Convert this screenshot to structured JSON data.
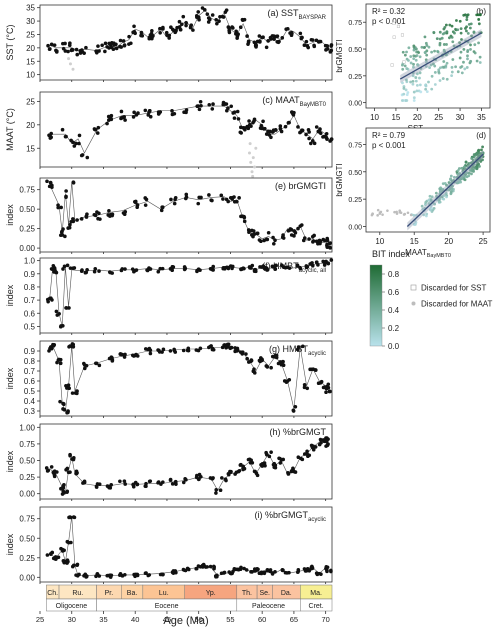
{
  "figure": {
    "x_axis_title": "Age (Ma)",
    "x_ticks": [
      25,
      30,
      35,
      40,
      45,
      50,
      55,
      60,
      65,
      70
    ],
    "stages": [
      {
        "label": "Ch.",
        "start": 26.0,
        "end": 28.0,
        "color": "#fde6c2"
      },
      {
        "label": "Ru.",
        "start": 28.0,
        "end": 33.9,
        "color": "#fde6c2"
      },
      {
        "label": "Pr.",
        "start": 33.9,
        "end": 37.8,
        "color": "#fdd8b0"
      },
      {
        "label": "Ba.",
        "start": 37.8,
        "end": 41.2,
        "color": "#fdd2a4"
      },
      {
        "label": "Lu.",
        "start": 41.2,
        "end": 47.8,
        "color": "#fcc494"
      },
      {
        "label": "Yp.",
        "start": 47.8,
        "end": 56.0,
        "color": "#f6a57f"
      },
      {
        "label": "Th.",
        "start": 56.0,
        "end": 59.2,
        "color": "#fbc3a0"
      },
      {
        "label": "Se.",
        "start": 59.2,
        "end": 61.6,
        "color": "#fbc3a0"
      },
      {
        "label": "Da.",
        "start": 61.6,
        "end": 66.0,
        "color": "#fbc3a0"
      },
      {
        "label": "Ma.",
        "start": 66.0,
        "end": 71.0,
        "color": "#f7ef93"
      }
    ],
    "epochs": [
      {
        "label": "Oligocene",
        "start": 26.0,
        "end": 33.9
      },
      {
        "label": "Eocene",
        "start": 33.9,
        "end": 56.0
      },
      {
        "label": "Paleocene",
        "start": 56.0,
        "end": 66.0
      },
      {
        "label": "Cret.",
        "start": 66.0,
        "end": 71.0
      }
    ],
    "colorbar": {
      "title": "BIT index",
      "ticks": [
        "0.0",
        "0.2",
        "0.4",
        "0.6",
        "0.8"
      ],
      "min": 0.0,
      "max": 0.9,
      "low_color": "#b9e2ec",
      "high_color": "#1f6b34"
    },
    "legend": {
      "items": [
        {
          "label": "Discarded for SST",
          "marker": "white-square"
        },
        {
          "label": "Discarded for MAAT",
          "marker": "grey-dot"
        }
      ]
    }
  },
  "chart_data": [
    {
      "id": "a",
      "type": "line",
      "xlim": [
        25,
        71
      ],
      "ylim": [
        8,
        36
      ],
      "ylabel": "SST (°C)",
      "yticks": [
        10,
        15,
        20,
        25,
        30,
        35
      ],
      "panel_label": "(a) SST",
      "panel_sub": "BAYSPAR",
      "segments": [
        [
          26.5,
          21
        ],
        [
          27.5,
          20
        ],
        [
          29,
          20
        ],
        [
          30,
          20
        ],
        [
          31,
          19
        ],
        [
          32,
          19.5
        ],
        [
          34,
          19
        ],
        [
          35,
          20
        ],
        [
          36,
          21
        ],
        [
          37,
          20
        ],
        [
          38,
          22
        ],
        [
          39,
          23
        ],
        [
          40,
          27
        ],
        [
          41,
          26
        ],
        [
          42,
          24
        ],
        [
          43,
          25
        ],
        [
          44,
          27
        ],
        [
          45,
          24
        ],
        [
          46,
          26
        ],
        [
          47,
          28
        ],
        [
          48,
          30
        ],
        [
          49,
          27
        ],
        [
          50,
          32
        ],
        [
          51,
          34
        ],
        [
          52,
          31
        ],
        [
          53,
          30
        ],
        [
          54,
          33
        ],
        [
          55,
          27
        ],
        [
          56,
          25
        ],
        [
          57,
          29
        ],
        [
          58,
          23
        ],
        [
          59,
          22
        ],
        [
          60,
          24
        ],
        [
          61,
          22
        ],
        [
          62,
          24
        ],
        [
          63,
          23
        ],
        [
          64,
          27
        ],
        [
          65,
          26
        ],
        [
          66,
          24
        ],
        [
          67,
          21
        ],
        [
          68,
          22
        ],
        [
          69,
          23
        ],
        [
          70,
          21
        ],
        [
          70.5,
          20
        ]
      ],
      "discarded": [
        [
          29.8,
          14
        ],
        [
          30.2,
          12
        ],
        [
          29.5,
          16
        ]
      ],
      "spread": 1.8
    },
    {
      "id": "c",
      "type": "line",
      "xlim": [
        25,
        71
      ],
      "ylim": [
        11,
        27
      ],
      "ylabel": "MAAT (°C)",
      "yticks": [
        15,
        20,
        25
      ],
      "panel_label": "(c) MAAT",
      "panel_sub": "BayMBT0",
      "segments": [
        [
          26.5,
          18
        ],
        [
          29,
          18
        ],
        [
          30,
          16
        ],
        [
          31,
          17
        ],
        [
          32,
          14
        ],
        [
          34,
          19
        ],
        [
          36,
          21
        ],
        [
          38,
          22
        ],
        [
          40,
          22
        ],
        [
          42,
          22.5
        ],
        [
          44,
          23
        ],
        [
          46,
          23
        ],
        [
          48,
          23.5
        ],
        [
          50,
          24
        ],
        [
          52,
          24
        ],
        [
          54,
          24
        ],
        [
          55,
          23
        ],
        [
          56,
          22
        ],
        [
          57,
          19
        ],
        [
          58,
          20
        ],
        [
          59,
          21
        ],
        [
          60,
          20
        ],
        [
          61,
          18
        ],
        [
          62,
          18
        ],
        [
          63,
          19
        ],
        [
          64,
          20
        ],
        [
          65,
          22
        ],
        [
          66,
          19
        ],
        [
          67,
          18
        ],
        [
          68,
          17
        ],
        [
          69,
          19
        ],
        [
          70,
          18
        ],
        [
          70.5,
          17
        ]
      ],
      "discarded": [
        [
          58,
          14
        ],
        [
          58.2,
          12
        ],
        [
          58.4,
          10
        ],
        [
          58.6,
          13
        ],
        [
          58.8,
          11
        ],
        [
          59,
          15
        ],
        [
          58.1,
          16
        ],
        [
          58.5,
          9
        ]
      ],
      "spread": 1.0
    },
    {
      "id": "e",
      "type": "line",
      "xlim": [
        25,
        71
      ],
      "ylim": [
        -0.05,
        0.9
      ],
      "ylabel": "index",
      "yticks": [
        "0.00",
        "0.25",
        "0.50",
        "0.75"
      ],
      "panel_label": "(e) brGMGTI",
      "panel_sub": "",
      "segments": [
        [
          26.5,
          0.82
        ],
        [
          28,
          0.55
        ],
        [
          28.5,
          0.2
        ],
        [
          29,
          0.7
        ],
        [
          29.5,
          0.3
        ],
        [
          30,
          0.85
        ],
        [
          30.5,
          0.35
        ],
        [
          32,
          0.4
        ],
        [
          34,
          0.42
        ],
        [
          36,
          0.46
        ],
        [
          38,
          0.48
        ],
        [
          40,
          0.55
        ],
        [
          42,
          0.6
        ],
        [
          44,
          0.5
        ],
        [
          46,
          0.6
        ],
        [
          48,
          0.65
        ],
        [
          50,
          0.62
        ],
        [
          52,
          0.65
        ],
        [
          54,
          0.66
        ],
        [
          55,
          0.6
        ],
        [
          56,
          0.62
        ],
        [
          57,
          0.38
        ],
        [
          58,
          0.2
        ],
        [
          59,
          0.18
        ],
        [
          60,
          0.12
        ],
        [
          61,
          0.15
        ],
        [
          62,
          0.1
        ],
        [
          63,
          0.12
        ],
        [
          64,
          0.25
        ],
        [
          65,
          0.2
        ],
        [
          66,
          0.28
        ],
        [
          67,
          0.1
        ],
        [
          68,
          0.12
        ],
        [
          69,
          0.06
        ],
        [
          70,
          0.08
        ],
        [
          70.5,
          0.05
        ]
      ],
      "discarded": [],
      "spread": 0.05
    },
    {
      "id": "f",
      "type": "line",
      "xlim": [
        25,
        71
      ],
      "ylim": [
        0.45,
        1.02
      ],
      "ylabel": "index",
      "yticks": [
        "0.5",
        "0.6",
        "0.7",
        "0.8",
        "0.9",
        "1.0"
      ],
      "panel_label": "(f) HMBT",
      "panel_sub": "acyclic, all",
      "segments": [
        [
          26.5,
          0.7
        ],
        [
          27,
          0.95
        ],
        [
          27.5,
          0.92
        ],
        [
          28,
          0.6
        ],
        [
          28.5,
          0.5
        ],
        [
          29,
          0.95
        ],
        [
          29.5,
          0.65
        ],
        [
          30,
          0.93
        ],
        [
          32,
          0.92
        ],
        [
          34,
          0.93
        ],
        [
          36,
          0.92
        ],
        [
          38,
          0.93
        ],
        [
          40,
          0.93
        ],
        [
          42,
          0.94
        ],
        [
          44,
          0.93
        ],
        [
          46,
          0.94
        ],
        [
          48,
          0.94
        ],
        [
          50,
          0.93
        ],
        [
          52,
          0.94
        ],
        [
          54,
          0.95
        ],
        [
          55,
          0.95
        ],
        [
          57,
          0.94
        ],
        [
          58,
          0.95
        ],
        [
          59,
          0.93
        ],
        [
          60,
          0.95
        ],
        [
          61,
          0.94
        ],
        [
          62,
          0.95
        ],
        [
          63,
          0.96
        ],
        [
          64,
          0.94
        ],
        [
          66,
          0.95
        ],
        [
          67,
          0.96
        ],
        [
          68,
          0.97
        ],
        [
          69,
          0.98
        ],
        [
          70,
          0.98
        ],
        [
          70.5,
          0.99
        ]
      ],
      "discarded": [],
      "spread": 0.015
    },
    {
      "id": "g",
      "type": "line",
      "xlim": [
        25,
        71
      ],
      "ylim": [
        0.25,
        1.0
      ],
      "ylabel": "index",
      "yticks": [
        "0.3",
        "0.4",
        "0.5",
        "0.6",
        "0.7",
        "0.8",
        "0.9"
      ],
      "panel_label": "(g) HMBT",
      "panel_sub": "acyclic",
      "segments": [
        [
          26.5,
          0.92
        ],
        [
          27,
          0.95
        ],
        [
          28,
          0.8
        ],
        [
          28.5,
          0.38
        ],
        [
          29,
          0.3
        ],
        [
          29.5,
          0.55
        ],
        [
          30,
          0.95
        ],
        [
          30.5,
          0.5
        ],
        [
          32,
          0.75
        ],
        [
          34,
          0.78
        ],
        [
          36,
          0.82
        ],
        [
          38,
          0.85
        ],
        [
          40,
          0.87
        ],
        [
          42,
          0.9
        ],
        [
          44,
          0.9
        ],
        [
          46,
          0.91
        ],
        [
          48,
          0.92
        ],
        [
          50,
          0.92
        ],
        [
          52,
          0.93
        ],
        [
          54,
          0.94
        ],
        [
          55,
          0.95
        ],
        [
          56,
          0.92
        ],
        [
          57,
          0.88
        ],
        [
          58,
          0.8
        ],
        [
          59,
          0.7
        ],
        [
          60,
          0.82
        ],
        [
          61,
          0.75
        ],
        [
          62,
          0.84
        ],
        [
          63,
          0.78
        ],
        [
          64,
          0.6
        ],
        [
          65,
          0.32
        ],
        [
          66,
          0.94
        ],
        [
          67,
          0.55
        ],
        [
          68,
          0.72
        ],
        [
          69,
          0.6
        ],
        [
          70,
          0.55
        ],
        [
          70.5,
          0.5
        ]
      ],
      "discarded": [],
      "spread": 0.025
    },
    {
      "id": "h",
      "type": "line",
      "xlim": [
        25,
        71
      ],
      "ylim": [
        -0.08,
        1.05
      ],
      "ylabel": "index",
      "yticks": [
        "0.00",
        "0.25",
        "0.50",
        "0.75",
        "1.00"
      ],
      "panel_label": "(h) %brGMGT",
      "panel_sub": "",
      "segments": [
        [
          26.5,
          0.38
        ],
        [
          27.5,
          0.3
        ],
        [
          28.5,
          0.1
        ],
        [
          29,
          0.02
        ],
        [
          29.5,
          0.35
        ],
        [
          30,
          0.55
        ],
        [
          30.5,
          0.3
        ],
        [
          32,
          0.15
        ],
        [
          34,
          0.12
        ],
        [
          36,
          0.12
        ],
        [
          38,
          0.15
        ],
        [
          40,
          0.14
        ],
        [
          42,
          0.15
        ],
        [
          44,
          0.15
        ],
        [
          46,
          0.18
        ],
        [
          48,
          0.2
        ],
        [
          50,
          0.25
        ],
        [
          52,
          0.22
        ],
        [
          53,
          0.05
        ],
        [
          54,
          0.22
        ],
        [
          55,
          0.3
        ],
        [
          56,
          0.32
        ],
        [
          57,
          0.4
        ],
        [
          58,
          0.48
        ],
        [
          59,
          0.3
        ],
        [
          60,
          0.45
        ],
        [
          61,
          0.6
        ],
        [
          62,
          0.42
        ],
        [
          63,
          0.5
        ],
        [
          64,
          0.3
        ],
        [
          65,
          0.35
        ],
        [
          66,
          0.55
        ],
        [
          67,
          0.6
        ],
        [
          68,
          0.7
        ],
        [
          69,
          0.78
        ],
        [
          70,
          0.82
        ],
        [
          70.5,
          0.75
        ]
      ],
      "discarded": [],
      "spread": 0.04
    },
    {
      "id": "i",
      "type": "line",
      "xlim": [
        25,
        71
      ],
      "ylim": [
        -0.06,
        0.9
      ],
      "ylabel": "index",
      "yticks": [
        "0.00",
        "0.25",
        "0.50",
        "0.75"
      ],
      "panel_label": "(i) %brGMGT",
      "panel_sub": "acyclic",
      "segments": [
        [
          26.5,
          0.3
        ],
        [
          27.5,
          0.25
        ],
        [
          28.5,
          0.35
        ],
        [
          29,
          0.2
        ],
        [
          29.5,
          0.45
        ],
        [
          30,
          0.78
        ],
        [
          30.5,
          0.15
        ],
        [
          31,
          0.02
        ],
        [
          32,
          0.02
        ],
        [
          34,
          0.03
        ],
        [
          36,
          0.02
        ],
        [
          38,
          0.03
        ],
        [
          40,
          0.03
        ],
        [
          42,
          0.04
        ],
        [
          44,
          0.05
        ],
        [
          46,
          0.07
        ],
        [
          48,
          0.1
        ],
        [
          50,
          0.13
        ],
        [
          51,
          0.15
        ],
        [
          52,
          0.12
        ],
        [
          53,
          0.02
        ],
        [
          54,
          0.05
        ],
        [
          55,
          0.06
        ],
        [
          56,
          0.1
        ],
        [
          57,
          0.12
        ],
        [
          58,
          0.08
        ],
        [
          59,
          0.1
        ],
        [
          60,
          0.05
        ],
        [
          61,
          0.08
        ],
        [
          62,
          0.05
        ],
        [
          63,
          0.1
        ],
        [
          64,
          0.05
        ],
        [
          66,
          0.08
        ],
        [
          67,
          0.1
        ],
        [
          68,
          0.12
        ],
        [
          69,
          0.05
        ],
        [
          70,
          0.12
        ],
        [
          70.5,
          0.08
        ]
      ],
      "discarded": [],
      "spread": 0.02
    },
    {
      "id": "b",
      "type": "scatter",
      "xlim": [
        8,
        37
      ],
      "ylim": [
        -0.05,
        0.92
      ],
      "xlabel": "SST",
      "xlabel_sub": "BAYSPAR",
      "ylabel": "brGMGTI",
      "xticks": [
        10,
        15,
        20,
        25,
        30,
        35
      ],
      "yticks": [
        "0.00",
        "0.25",
        "0.50",
        "0.75"
      ],
      "panel_label": "(b)",
      "r2": "R² = 0.32",
      "p": "p < 0.001",
      "fit": {
        "x0": 16,
        "y0": 0.22,
        "x1": 35,
        "y1": 0.65
      }
    },
    {
      "id": "d",
      "type": "scatter",
      "xlim": [
        8,
        26
      ],
      "ylim": [
        -0.05,
        0.9
      ],
      "xlabel": "MAAT",
      "xlabel_sub": "BayMBT0",
      "ylabel": "brGMGTI",
      "xticks": [
        10,
        15,
        20,
        25
      ],
      "yticks": [
        "0.00",
        "0.25",
        "0.50",
        "0.75"
      ],
      "panel_label": "(d)",
      "r2": "R² = 0.79",
      "p": "p < 0.001",
      "fit": {
        "x0": 14,
        "y0": 0.0,
        "x1": 25,
        "y1": 0.66
      }
    }
  ]
}
